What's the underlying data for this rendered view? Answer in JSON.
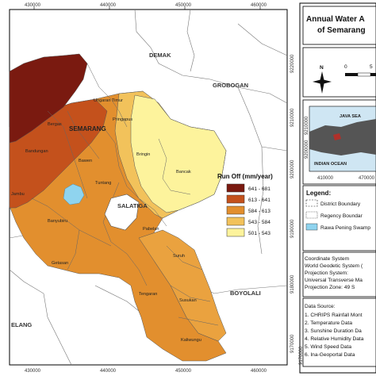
{
  "title_lines": [
    "Annual Water A",
    "of Semarang"
  ],
  "grid": {
    "x_top": [
      "430000",
      "440000",
      "450000",
      "460000"
    ],
    "x_bottom": [
      "430000",
      "440000",
      "450000",
      "460000"
    ],
    "y_right": [
      "9220000",
      "9210000",
      "9200000",
      "9190000",
      "9180000",
      "9170000"
    ],
    "y_right_2": [
      "9220000",
      "9210000",
      "9200000",
      "9190000",
      "9180000",
      "9170000"
    ],
    "x_inset": [
      "410000",
      "470000"
    ]
  },
  "neighbors": {
    "demak": "DEMAK",
    "grobogan": "GROBOGAN",
    "salatiga": "SALATIGA",
    "boyolali": "BOYOLALI",
    "semarang": "SEMARANG",
    "magelang": "ELANG"
  },
  "districts": {
    "ungaran_timur": "Ungaran Timur",
    "pringapus": "Pringapus",
    "bergas": "Bergas",
    "bandungan": "Bandungan",
    "jambu": "Jambu",
    "bawen": "Bawen",
    "tuntang": "Tuntang",
    "bringin": "Bringin",
    "bancak": "Bancak",
    "banyubiru": "Banyubiru",
    "pabelan": "Pabelan",
    "getasan": "Getasan",
    "suruh": "Suruh",
    "tengaran": "Tengaran",
    "susukan": "Susukan",
    "kaliwungu": "Kaliwungu"
  },
  "legend_runoff": {
    "title": "Run Off (mm/year)",
    "classes": [
      {
        "label": "641 - 681",
        "color": "#7a1a10"
      },
      {
        "label": "613 - 641",
        "color": "#c4511c"
      },
      {
        "label": "584 - 613",
        "color": "#e28f2e"
      },
      {
        "label": "543 - 584",
        "color": "#f2c25b"
      },
      {
        "label": "501 - 543",
        "color": "#fdf39c"
      }
    ]
  },
  "scale": {
    "zero": "0",
    "five": "5"
  },
  "north_letter": "N",
  "inset": {
    "sea_top": "JAVA SEA",
    "sea_bottom": "INDIAN OCEAN"
  },
  "legend": {
    "title": "Legend:",
    "items": [
      {
        "label": "District Boundary"
      },
      {
        "label": "Regency Boundar"
      },
      {
        "label": "Rawa Pening Swamp",
        "color": "#8fd4ef"
      }
    ]
  },
  "coordinate": {
    "lines": [
      "Coordinate System",
      "World Geodetic System (",
      "Projection System:",
      "Universal Transverse Ma",
      "Projection Zone: 49 S"
    ]
  },
  "data_source": {
    "title": "Data Source:",
    "items": [
      "1. CHRIPS Rainfall Mont",
      "2. Temperature Data",
      "3. Sunshine Duration Da",
      "4. Relative Humidity Data",
      "5. Wind Speed Data",
      "6. Ina-Geoportal Data"
    ]
  }
}
